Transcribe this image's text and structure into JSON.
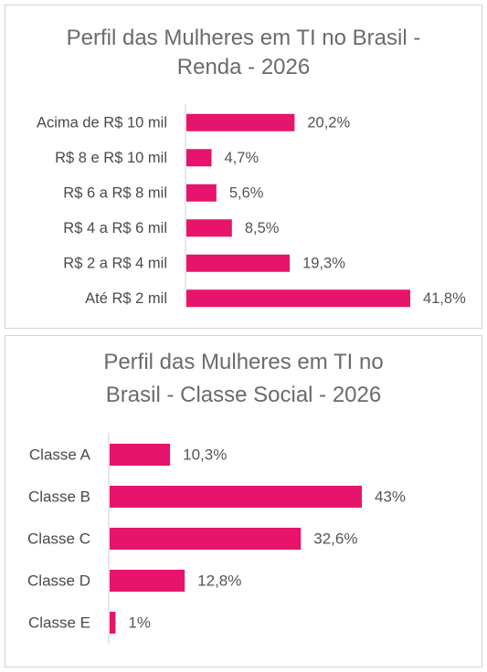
{
  "chart_data": [
    {
      "type": "bar",
      "orientation": "horizontal",
      "title_lines": [
        "Perfil das Mulheres em TI no Brasil -",
        "Renda - 2026"
      ],
      "categories": [
        "Acima de R$ 10 mil",
        "R$ 8 e R$ 10 mil",
        "R$ 6 a R$ 8 mil",
        "R$ 4 a R$ 6 mil",
        "R$ 2 a R$ 4 mil",
        "Até R$ 2 mil"
      ],
      "values": [
        20.2,
        4.7,
        5.6,
        8.5,
        19.3,
        41.8
      ],
      "value_labels": [
        "20,2%",
        "4,7%",
        "5,6%",
        "8,5%",
        "19,3%",
        "41,8%"
      ],
      "bar_color": "#e6146b",
      "xlim": [
        0,
        43
      ],
      "grid": false,
      "legend": "none"
    },
    {
      "type": "bar",
      "orientation": "horizontal",
      "title_lines": [
        "Perfil das Mulheres em TI no",
        "Brasil - Classe Social - 2026"
      ],
      "categories": [
        "Classe A",
        "Classe B",
        "Classe C",
        "Classe D",
        "Classe E"
      ],
      "values": [
        10.3,
        43,
        32.6,
        12.8,
        1
      ],
      "value_labels": [
        "10,3%",
        "43%",
        "32,6%",
        "12,8%",
        "1%"
      ],
      "bar_color": "#e6146b",
      "xlim": [
        0,
        43
      ],
      "grid": false,
      "legend": "none"
    }
  ]
}
